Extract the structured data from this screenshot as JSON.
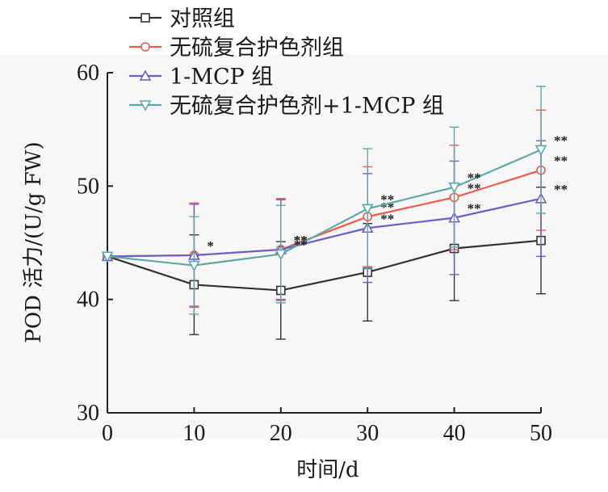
{
  "chart_data": {
    "type": "line",
    "xlabel": "时间/d",
    "ylabel": "POD 活力/(U/g FW)",
    "x": [
      0,
      10,
      20,
      30,
      40,
      50
    ],
    "xlim": [
      0,
      50
    ],
    "ylim": [
      30,
      60
    ],
    "xticks": [
      "0",
      "10",
      "20",
      "30",
      "40",
      "50"
    ],
    "yticks": [
      "30",
      "40",
      "50",
      "60"
    ],
    "grid": false,
    "legend_position": "top-left",
    "series": [
      {
        "name": "对照组",
        "color": "#333333",
        "marker": "square",
        "values": [
          43.8,
          41.3,
          40.8,
          42.4,
          44.5,
          45.2
        ],
        "error": [
          0,
          4.4,
          4.3,
          4.3,
          4.6,
          4.7
        ],
        "significance": [
          "",
          "",
          "",
          "",
          "",
          ""
        ]
      },
      {
        "name": "无硫复合护色剂组",
        "color": "#f05a4a",
        "marker": "circle",
        "values": [
          43.8,
          43.9,
          44.4,
          47.3,
          49.0,
          51.4
        ],
        "error": [
          0,
          4.6,
          4.5,
          4.4,
          4.6,
          5.3
        ],
        "significance": [
          "",
          "*",
          "**",
          "**",
          "**",
          "**"
        ]
      },
      {
        "name": "1-MCP 组",
        "color": "#6b5fc4",
        "marker": "triangle-up",
        "values": [
          43.8,
          43.9,
          44.4,
          46.3,
          47.2,
          48.9
        ],
        "error": [
          0,
          4.5,
          4.4,
          4.8,
          5.0,
          5.1
        ],
        "significance": [
          "",
          "",
          "**",
          "**",
          "**",
          "**"
        ]
      },
      {
        "name": "无硫复合护色剂+1-MCP 组",
        "color": "#5aa8a8",
        "marker": "triangle-down",
        "values": [
          43.8,
          43.0,
          44.0,
          48.0,
          49.9,
          53.2
        ],
        "error": [
          0,
          4.3,
          4.3,
          5.3,
          5.3,
          5.6
        ],
        "significance": [
          "",
          "",
          "**",
          "**",
          "**",
          "**"
        ]
      }
    ]
  }
}
